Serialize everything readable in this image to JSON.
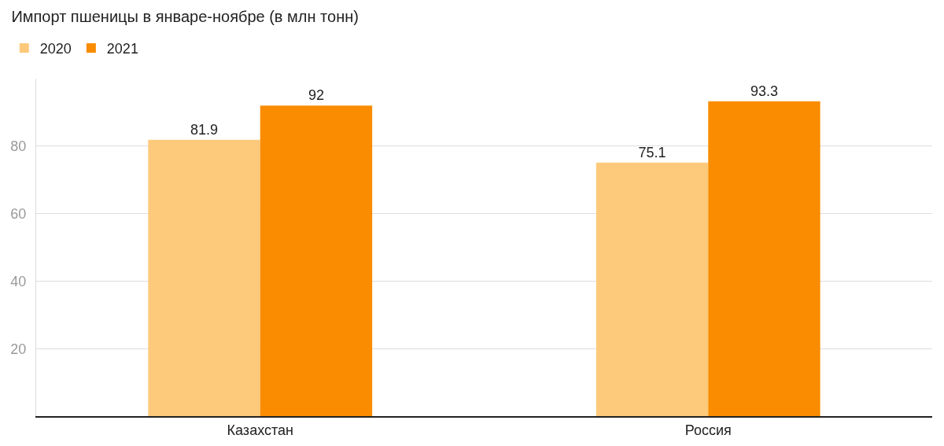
{
  "chart_data": {
    "type": "bar",
    "title": "Импорт пшеницы в январе-ноябре (в млн тонн)",
    "categories": [
      "Казахстан",
      "Россия"
    ],
    "series": [
      {
        "name": "2020",
        "color": "#fdc97a",
        "values": [
          81.9,
          75.1
        ]
      },
      {
        "name": "2021",
        "color": "#f98c00",
        "values": [
          92,
          93.3
        ]
      }
    ],
    "ylim": [
      0,
      100
    ],
    "yticks": [
      20,
      40,
      60,
      80
    ],
    "grid": "y",
    "legend": "top left",
    "data_labels": true
  }
}
